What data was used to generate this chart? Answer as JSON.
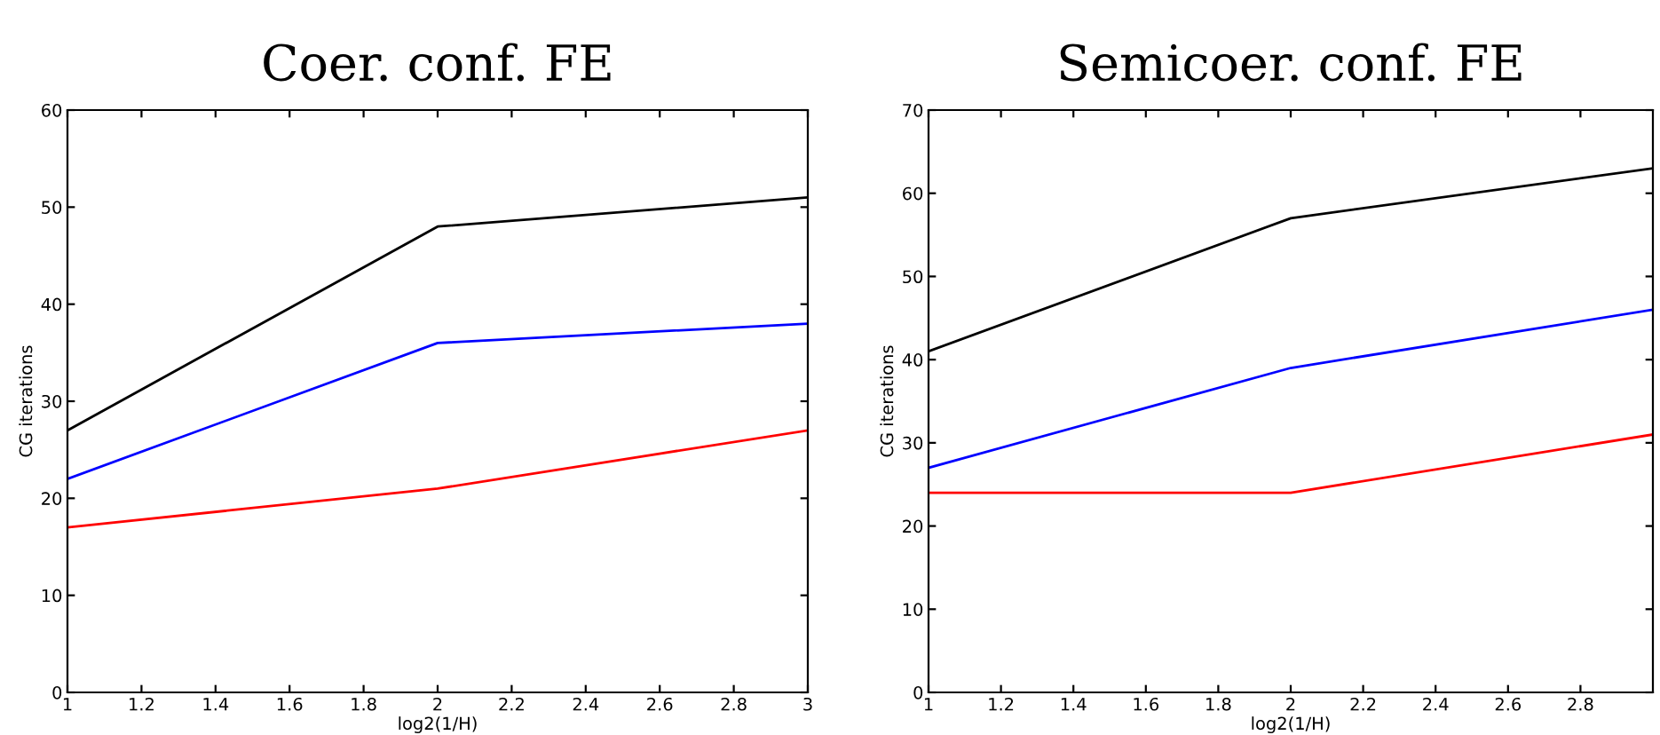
{
  "chart_data": [
    {
      "type": "line",
      "title": "Coer. conf. FE",
      "xlabel": "log2(1/H)",
      "ylabel": "CG iterations",
      "x": [
        1,
        2,
        3
      ],
      "xlim": [
        1,
        3
      ],
      "xticks": [
        1,
        1.2,
        1.4,
        1.6,
        1.8,
        2,
        2.2,
        2.4,
        2.6,
        2.8,
        3
      ],
      "ylim": [
        0,
        60
      ],
      "yticks": [
        0,
        10,
        20,
        30,
        40,
        50,
        60
      ],
      "grid": false,
      "series": [
        {
          "color": "#000000",
          "values": [
            27,
            48,
            51
          ]
        },
        {
          "color": "#0000ff",
          "values": [
            22,
            36,
            38
          ]
        },
        {
          "color": "#ff0000",
          "values": [
            17,
            21,
            27
          ]
        }
      ]
    },
    {
      "type": "line",
      "title": "Semicoer. conf. FE",
      "xlabel": "log2(1/H)",
      "ylabel": "CG iterations",
      "x": [
        1,
        2,
        3
      ],
      "xlim": [
        1,
        3
      ],
      "xticks": [
        1,
        1.2,
        1.4,
        1.6,
        1.8,
        2,
        2.2,
        2.4,
        2.6,
        2.8
      ],
      "ylim": [
        0,
        70
      ],
      "yticks": [
        0,
        10,
        20,
        30,
        40,
        50,
        60,
        70
      ],
      "grid": false,
      "series": [
        {
          "color": "#000000",
          "values": [
            41,
            57,
            63
          ]
        },
        {
          "color": "#0000ff",
          "values": [
            27,
            39,
            46
          ]
        },
        {
          "color": "#ff0000",
          "values": [
            24,
            24,
            31
          ]
        }
      ]
    }
  ]
}
